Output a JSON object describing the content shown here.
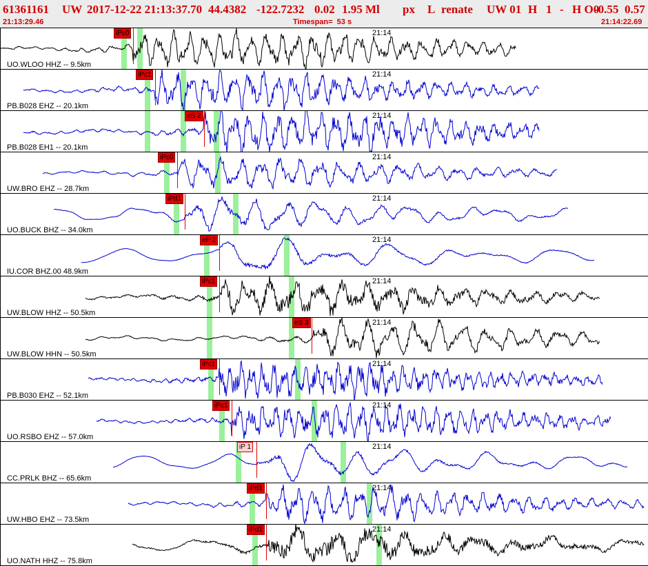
{
  "header": {
    "event_id": "61361161",
    "network": "UW",
    "datetime": "2017-12-22 21:13:37.70",
    "lat": "44.4382",
    "lon": "-122.7232",
    "depth": "0.02",
    "magnitude": "1.95 Ml",
    "solution": "px",
    "type": "L",
    "analyst": "renate",
    "extra1": "UW 01",
    "extra2": "H",
    "extra3": "1",
    "extra4": "-",
    "extra5": "H O0",
    "extra6": "-0.55",
    "extra7": "0.57"
  },
  "timebar": {
    "start": "21:13:29.46",
    "span": "Timespan=  53 s",
    "end": "21:14:22.69"
  },
  "colors": {
    "header_text": "#d00000",
    "trace_black": "#000000",
    "trace_blue": "#0000d0",
    "pick_red": "#e00000",
    "window_green": "#90ee90"
  },
  "traces": [
    {
      "label": "UO.WLOO HHZ -- 9.5km",
      "time": "21:14",
      "color": "black",
      "pick": "iPc0",
      "pick_style": "filled"
    },
    {
      "label": "PB.B028 EHZ -- 20.1km",
      "time": "21:14",
      "color": "blue",
      "pick": "iPc1",
      "pick_style": "filled"
    },
    {
      "label": "PB.B028 EH1 -- 20.1km",
      "time": "21:14",
      "color": "blue",
      "pick": "eS 2",
      "pick_style": "filled"
    },
    {
      "label": "UW.BRO EHZ -- 28.7km",
      "time": "21:14",
      "color": "blue",
      "pick": "iPc0",
      "pick_style": "filled"
    },
    {
      "label": "UO.BUCK BHZ -- 34.0km",
      "time": "21:14",
      "color": "blue",
      "pick": "iPd1",
      "pick_style": "filled"
    },
    {
      "label": "IU.COR BHZ.00 48.9km",
      "time": "21:14",
      "color": "blue",
      "pick": "eP 2",
      "pick_style": "filled"
    },
    {
      "label": "UW.BLOW HHZ -- 50.5km",
      "time": "21:14",
      "color": "black",
      "pick": "iPc1",
      "pick_style": "filled"
    },
    {
      "label": "UW.BLOW HHN -- 50.5km",
      "time": "21:14",
      "color": "black",
      "pick": "eS 3",
      "pick_style": "filled"
    },
    {
      "label": "PB.B030 EHZ -- 52.1km",
      "time": "21:14",
      "color": "blue",
      "pick": "iPc1",
      "pick_style": "filled"
    },
    {
      "label": "UO.RSBO EHZ -- 57.0km",
      "time": "21:14",
      "color": "blue",
      "pick": "iPc1",
      "pick_style": "filled"
    },
    {
      "label": "CC.PRLK BHZ -- 65.6km",
      "time": "21:14",
      "color": "blue",
      "pick": "iP 1",
      "pick_style": "open"
    },
    {
      "label": "UW.HBO EHZ -- 73.5km",
      "time": "21:14",
      "color": "blue",
      "pick": "iPd1",
      "pick_style": "filled"
    },
    {
      "label": "UO.NATH HHZ -- 75.8km",
      "time": "21:14",
      "color": "black",
      "pick": "iPd1",
      "pick_style": "filled"
    }
  ]
}
